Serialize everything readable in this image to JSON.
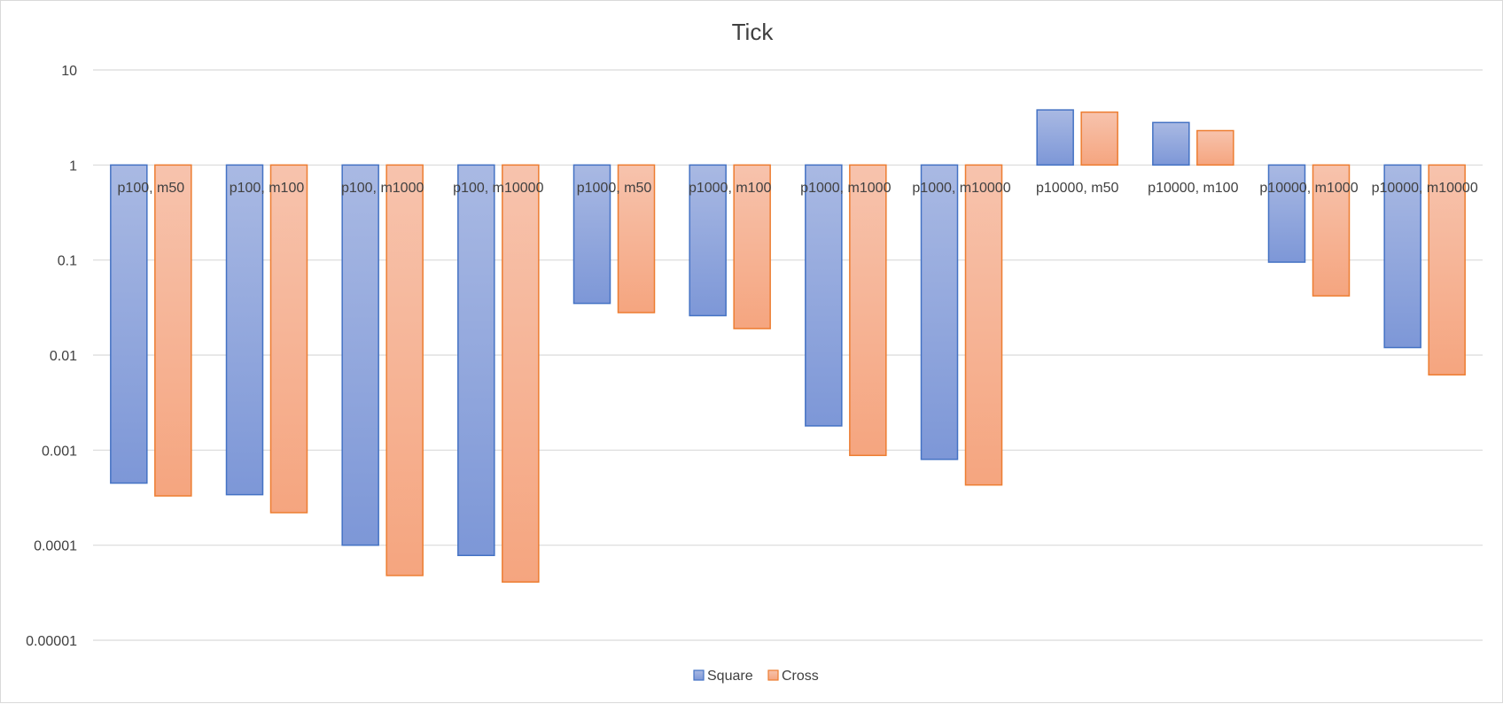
{
  "chart_data": {
    "type": "bar",
    "title": "Tick",
    "xlabel": "",
    "ylabel": "",
    "y_scale": "log",
    "ylim": [
      1e-05,
      10
    ],
    "y_ticks": [
      "10",
      "1",
      "0.1",
      "0.01",
      "0.001",
      "0.0001",
      "0.00001"
    ],
    "baseline": 1,
    "grid": true,
    "legend_position": "bottom",
    "categories": [
      "p100, m50",
      "p100, m100",
      "p100, m1000",
      "p100, m10000",
      "p1000, m50",
      "p1000, m100",
      "p1000, m1000",
      "p1000, m10000",
      "p10000, m50",
      "p10000, m100",
      "p10000, m1000",
      "p10000, m10000"
    ],
    "series": [
      {
        "name": "Square",
        "color_top": "#a9b9e3",
        "color_bottom": "#7d97d7",
        "stroke": "#4472c4",
        "values": [
          0.00045,
          0.00034,
          0.0001,
          7.8e-05,
          0.035,
          0.026,
          0.0018,
          0.0008,
          3.8,
          2.8,
          0.095,
          0.012
        ]
      },
      {
        "name": "Cross",
        "color_top": "#f7c3ad",
        "color_bottom": "#f5a57f",
        "stroke": "#ed7d31",
        "values": [
          0.00033,
          0.00022,
          4.8e-05,
          4.1e-05,
          0.028,
          0.019,
          0.00088,
          0.00043,
          3.6,
          2.3,
          0.042,
          0.0062
        ]
      }
    ]
  }
}
